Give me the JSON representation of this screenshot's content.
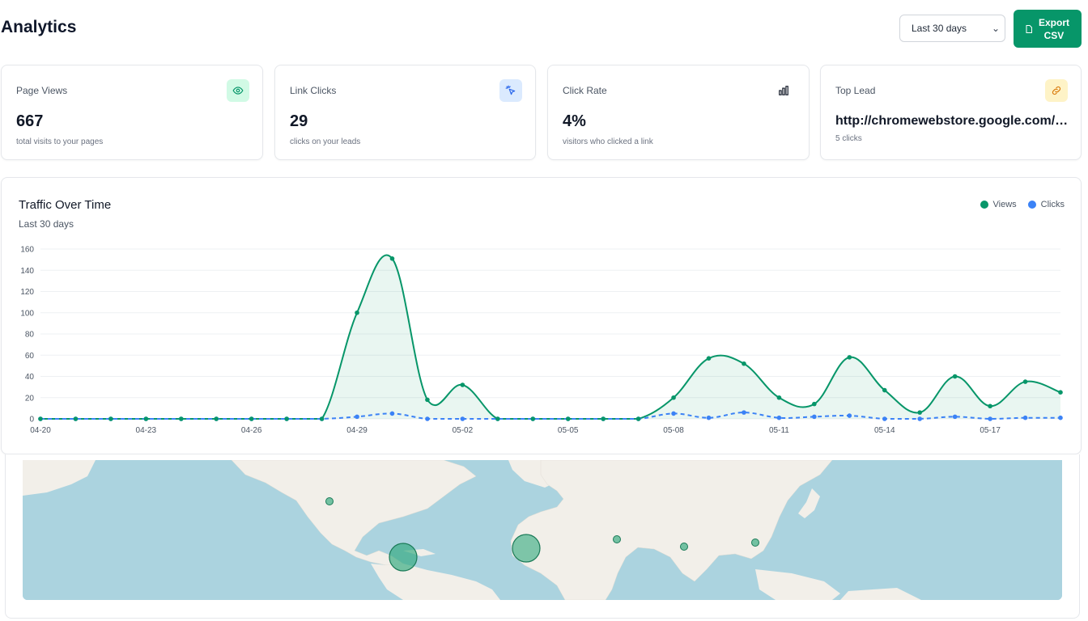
{
  "header": {
    "title": "Analytics",
    "range_select": "Last 30 days",
    "export_label_line1": "Export",
    "export_label_line2": "CSV"
  },
  "cards": [
    {
      "label": "Page Views",
      "value": "667",
      "sub": "total visits to your pages",
      "icon": "eye-icon",
      "icon_bg": "#d1fae5",
      "icon_color": "#059669"
    },
    {
      "label": "Link Clicks",
      "value": "29",
      "sub": "clicks on your leads",
      "icon": "cursor-click-icon",
      "icon_bg": "#dbeafe",
      "icon_color": "#2563eb"
    },
    {
      "label": "Click Rate",
      "value": "4%",
      "sub": "visitors who clicked a link",
      "icon": "bar-chart-icon",
      "icon_bg": "#ffffff",
      "icon_color": "#111827"
    },
    {
      "label": "Top Lead",
      "value": "http://chromewebstore.google.com/detail/...",
      "sub": "5 clicks",
      "icon": "link-icon",
      "icon_bg": "#fef3c7",
      "icon_color": "#d97706"
    }
  ],
  "chart": {
    "title": "Traffic Over Time",
    "subtitle": "Last 30 days"
  },
  "chart_data": {
    "type": "area",
    "x": [
      "04-20",
      "04-21",
      "04-22",
      "04-23",
      "04-24",
      "04-25",
      "04-26",
      "04-27",
      "04-28",
      "04-29",
      "04-30",
      "05-01",
      "05-02",
      "05-03",
      "05-04",
      "05-05",
      "05-06",
      "05-07",
      "05-08",
      "05-09",
      "05-10",
      "05-11",
      "05-12",
      "05-13",
      "05-14",
      "05-15",
      "05-16",
      "05-17",
      "05-18",
      "05-19"
    ],
    "tick_labels": [
      "04-20",
      "04-23",
      "04-26",
      "04-29",
      "05-02",
      "05-05",
      "05-08",
      "05-11",
      "05-14",
      "05-17"
    ],
    "series": [
      {
        "name": "Views",
        "color": "#079669",
        "style": "solid",
        "fill": true,
        "values": [
          0,
          0,
          0,
          0,
          0,
          0,
          0,
          0,
          0,
          100,
          151,
          18,
          32,
          0,
          0,
          0,
          0,
          0,
          20,
          57,
          52,
          20,
          14,
          58,
          27,
          6,
          40,
          12,
          35,
          25
        ]
      },
      {
        "name": "Clicks",
        "color": "#3b82f6",
        "style": "dashed",
        "fill": false,
        "values": [
          0,
          0,
          0,
          0,
          0,
          0,
          0,
          0,
          0,
          2,
          5,
          0,
          0,
          0,
          0,
          0,
          0,
          0,
          5,
          1,
          6,
          1,
          2,
          3,
          0,
          0,
          2,
          0,
          1,
          1
        ]
      }
    ],
    "ylim": [
      0,
      160
    ],
    "yticks": [
      0,
      20,
      40,
      60,
      80,
      100,
      120,
      140,
      160
    ],
    "grid": true,
    "legend": "top-right"
  },
  "map": {
    "land_color": "#f2efe9",
    "water_color": "#abd3df",
    "marker_color": "#2ea87d",
    "markers": [
      {
        "region": "north-america",
        "size": "small"
      },
      {
        "region": "caribbean-venezuela",
        "size": "large"
      },
      {
        "region": "west-africa",
        "size": "large"
      },
      {
        "region": "arabia",
        "size": "small"
      },
      {
        "region": "india",
        "size": "small"
      },
      {
        "region": "southeast-asia",
        "size": "small"
      }
    ]
  }
}
